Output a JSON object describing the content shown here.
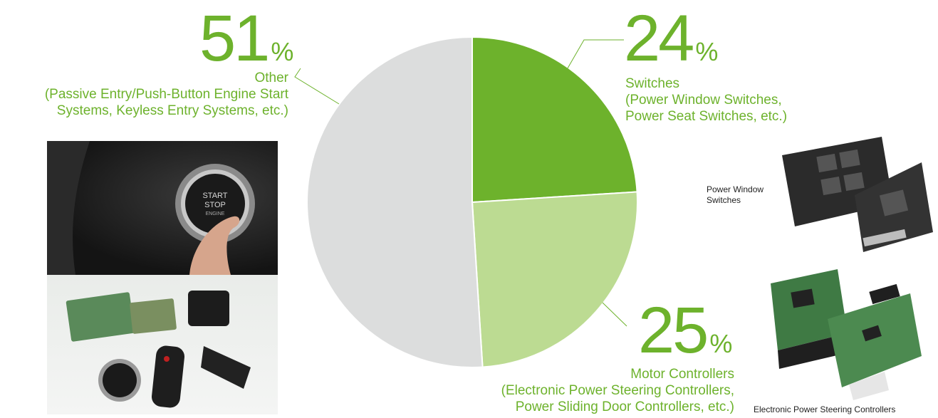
{
  "chart_data": {
    "type": "pie",
    "unit": "%",
    "slices": [
      {
        "pct_label": "24",
        "value": 24,
        "color": "#6db22c",
        "label": "Switches",
        "detail": [
          "(Power Window Switches,",
          "Power Seat Switches, etc.)"
        ]
      },
      {
        "pct_label": "25",
        "value": 25,
        "color": "#bcdb92",
        "label": "Motor Controllers",
        "detail": [
          "(Electronic Power Steering Controllers,",
          "Power Sliding Door Controllers, etc.)"
        ]
      },
      {
        "pct_label": "51",
        "value": 51,
        "color": "#dcdddd",
        "label": "Other",
        "detail": [
          "(Passive Entry/Push-Button Engine Start",
          "Systems, Keyless Entry Systems, etc.)"
        ]
      }
    ]
  },
  "captions": {
    "power_window": [
      "Power Window",
      "Switches"
    ],
    "eps": "Electronic Power Steering Controllers"
  },
  "photo_labels": {
    "button": [
      "START",
      "STOP",
      "ENGINE"
    ]
  }
}
